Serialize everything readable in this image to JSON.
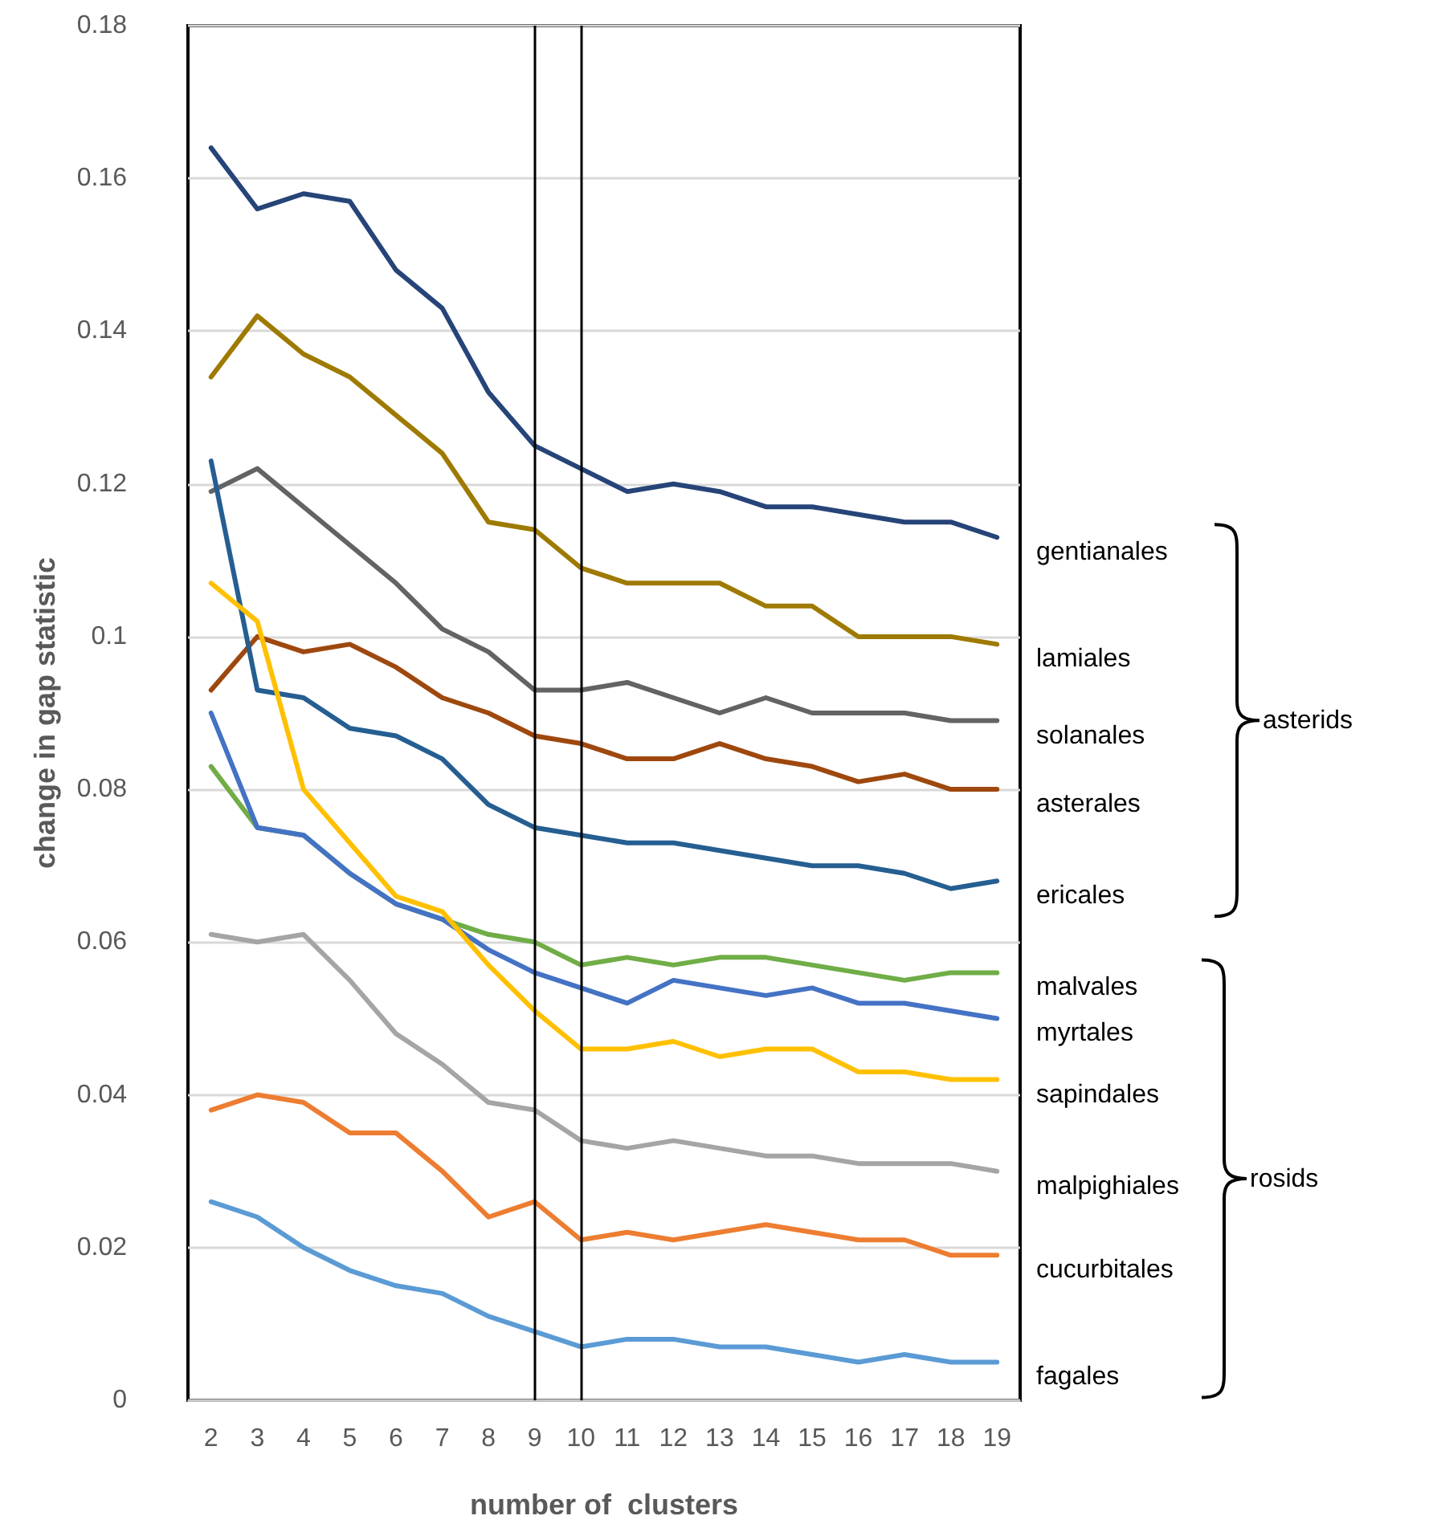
{
  "chart_data": {
    "type": "line",
    "x": [
      2,
      3,
      4,
      5,
      6,
      7,
      8,
      9,
      10,
      11,
      12,
      13,
      14,
      15,
      16,
      17,
      18,
      19
    ],
    "xlim": [
      1.5,
      19.5
    ],
    "xticks": [
      2,
      3,
      4,
      5,
      6,
      7,
      8,
      9,
      10,
      11,
      12,
      13,
      14,
      15,
      16,
      17,
      18,
      19
    ],
    "ylim": [
      0,
      0.18
    ],
    "yticks": [
      0,
      0.02,
      0.04,
      0.06,
      0.08,
      0.1,
      0.12,
      0.14,
      0.16,
      0.18
    ],
    "xlabel": "number of  clusters",
    "ylabel": "change in gap statistic",
    "grid": "y",
    "line_style": "solid",
    "ref_lines": [
      {
        "axis": "x",
        "value": 9,
        "color": "#000000"
      },
      {
        "axis": "x",
        "value": 10,
        "color": "#000000"
      }
    ],
    "annotations": [
      "asterids",
      "rosids"
    ],
    "series": [
      {
        "name": "gentianales",
        "color": "#264478",
        "values": [
          0.164,
          0.156,
          0.158,
          0.157,
          0.148,
          0.143,
          0.132,
          0.125,
          0.122,
          0.119,
          0.12,
          0.119,
          0.117,
          0.117,
          0.116,
          0.115,
          0.115,
          0.113
        ]
      },
      {
        "name": "lamiales",
        "color": "#9e7a00",
        "values": [
          0.134,
          0.142,
          0.137,
          0.134,
          0.129,
          0.124,
          0.115,
          0.114,
          0.109,
          0.107,
          0.107,
          0.107,
          0.104,
          0.104,
          0.1,
          0.1,
          0.1,
          0.099
        ]
      },
      {
        "name": "solanales",
        "color": "#636363",
        "values": [
          0.119,
          0.122,
          0.117,
          0.112,
          0.107,
          0.101,
          0.098,
          0.093,
          0.093,
          0.094,
          0.092,
          0.09,
          0.092,
          0.09,
          0.09,
          0.09,
          0.089,
          0.089
        ]
      },
      {
        "name": "asterales",
        "color": "#9e480e",
        "values": [
          0.093,
          0.1,
          0.098,
          0.099,
          0.096,
          0.092,
          0.09,
          0.087,
          0.086,
          0.084,
          0.084,
          0.086,
          0.084,
          0.083,
          0.081,
          0.082,
          0.08,
          0.08
        ]
      },
      {
        "name": "ericales",
        "color": "#255e91",
        "values": [
          0.123,
          0.093,
          0.092,
          0.088,
          0.087,
          0.084,
          0.078,
          0.075,
          0.074,
          0.073,
          0.073,
          0.072,
          0.071,
          0.07,
          0.07,
          0.069,
          0.067,
          0.068
        ]
      },
      {
        "name": "malvales",
        "color": "#70ad47",
        "values": [
          0.083,
          0.075,
          0.074,
          0.069,
          0.065,
          0.063,
          0.061,
          0.06,
          0.057,
          0.058,
          0.057,
          0.058,
          0.058,
          0.057,
          0.056,
          0.055,
          0.056,
          0.056
        ]
      },
      {
        "name": "myrtales",
        "color": "#4472c4",
        "values": [
          0.09,
          0.075,
          0.074,
          0.069,
          0.065,
          0.063,
          0.059,
          0.056,
          0.054,
          0.052,
          0.055,
          0.054,
          0.053,
          0.054,
          0.052,
          0.052,
          0.051,
          0.05
        ]
      },
      {
        "name": "sapindales",
        "color": "#ffc000",
        "values": [
          0.107,
          0.102,
          0.08,
          0.073,
          0.066,
          0.064,
          0.057,
          0.051,
          0.046,
          0.046,
          0.047,
          0.045,
          0.046,
          0.046,
          0.043,
          0.043,
          0.042,
          0.042
        ]
      },
      {
        "name": "malpighiales",
        "color": "#a5a5a5",
        "values": [
          0.061,
          0.06,
          0.061,
          0.055,
          0.048,
          0.044,
          0.039,
          0.038,
          0.034,
          0.033,
          0.034,
          0.033,
          0.032,
          0.032,
          0.031,
          0.031,
          0.031,
          0.03
        ]
      },
      {
        "name": "cucurbitales",
        "color": "#ed7d31",
        "values": [
          0.038,
          0.04,
          0.039,
          0.035,
          0.035,
          0.03,
          0.024,
          0.026,
          0.021,
          0.022,
          0.021,
          0.022,
          0.023,
          0.022,
          0.021,
          0.021,
          0.019,
          0.019
        ]
      },
      {
        "name": "fagales",
        "color": "#5b9bd5",
        "values": [
          0.026,
          0.024,
          0.02,
          0.017,
          0.015,
          0.014,
          0.011,
          0.009,
          0.007,
          0.008,
          0.008,
          0.007,
          0.007,
          0.006,
          0.005,
          0.006,
          0.005,
          0.005
        ]
      }
    ]
  }
}
